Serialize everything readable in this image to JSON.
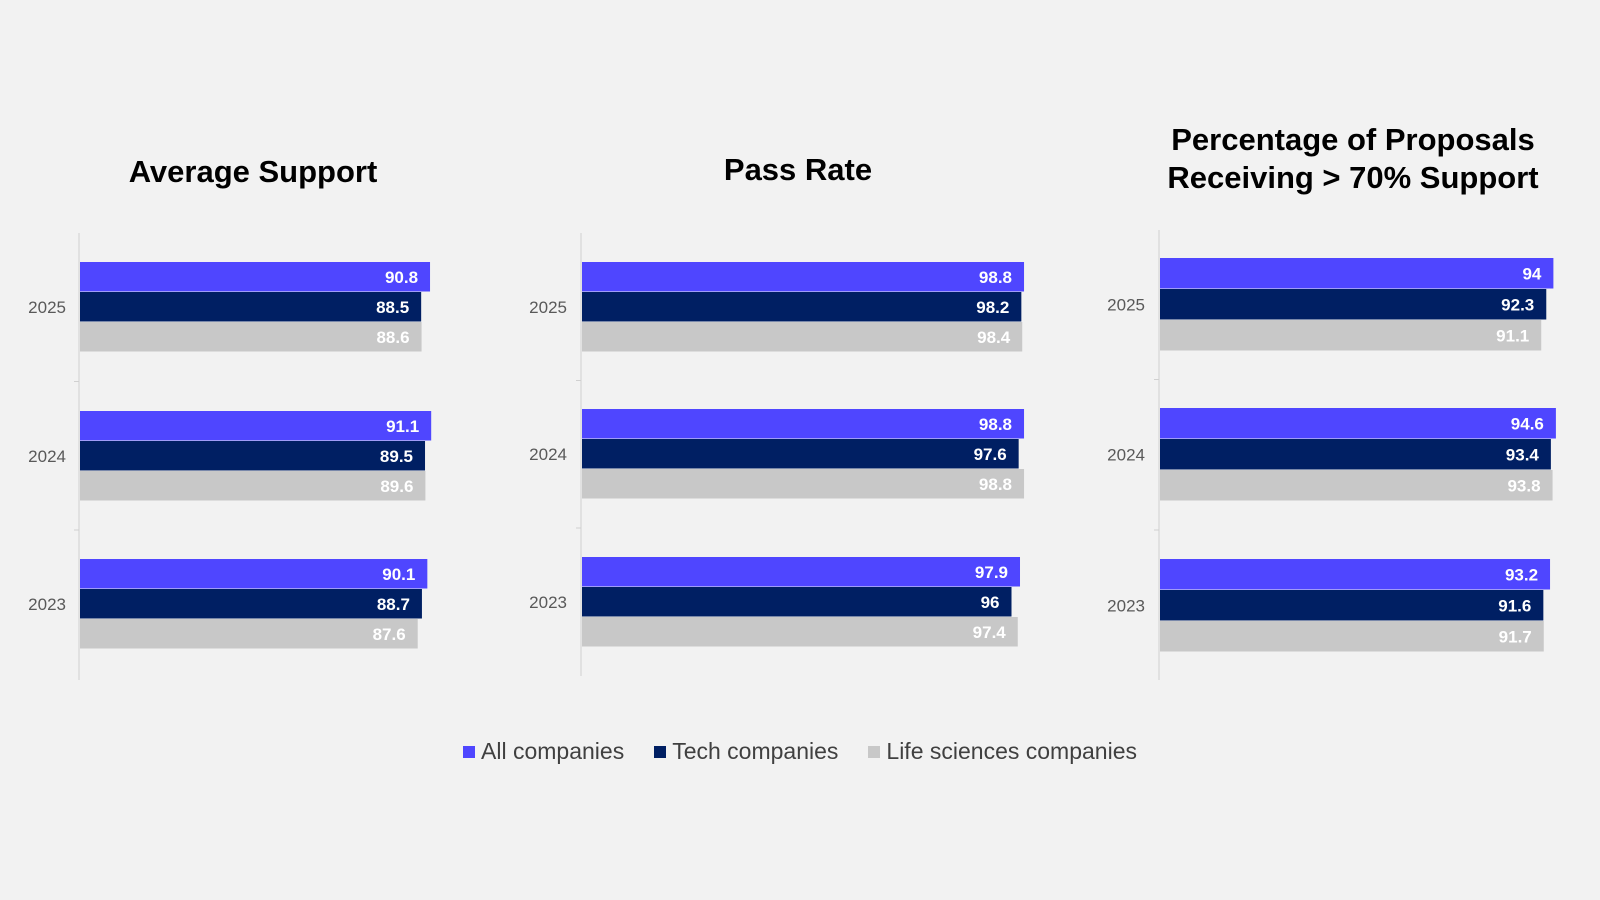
{
  "chart_data": [
    {
      "type": "bar",
      "orientation": "horizontal",
      "title": "Average Support",
      "categories": [
        "2025",
        "2024",
        "2023"
      ],
      "series": [
        {
          "name": "All companies",
          "values": [
            90.8,
            91.1,
            90.1
          ]
        },
        {
          "name": "Tech companies",
          "values": [
            88.5,
            89.5,
            88.7
          ]
        },
        {
          "name": "Life sciences companies",
          "values": [
            88.6,
            89.6,
            87.6
          ]
        }
      ],
      "xlabel": "",
      "ylabel": "",
      "grid": false,
      "data_labels": true
    },
    {
      "type": "bar",
      "orientation": "horizontal",
      "title": "Pass Rate",
      "categories": [
        "2025",
        "2024",
        "2023"
      ],
      "series": [
        {
          "name": "All companies",
          "values": [
            98.8,
            98.8,
            97.9
          ]
        },
        {
          "name": "Tech companies",
          "values": [
            98.2,
            97.6,
            96
          ]
        },
        {
          "name": "Life sciences companies",
          "values": [
            98.4,
            98.8,
            97.4
          ]
        }
      ],
      "xlabel": "",
      "ylabel": "",
      "grid": false,
      "data_labels": true
    },
    {
      "type": "bar",
      "orientation": "horizontal",
      "title": "Percentage of Proposals\nReceiving > 70% Support",
      "categories": [
        "2025",
        "2024",
        "2023"
      ],
      "series": [
        {
          "name": "All companies",
          "values": [
            94,
            94.6,
            93.2
          ]
        },
        {
          "name": "Tech companies",
          "values": [
            92.3,
            93.4,
            91.6
          ]
        },
        {
          "name": "Life sciences companies",
          "values": [
            91.1,
            93.8,
            91.7
          ]
        }
      ],
      "xlabel": "",
      "ylabel": "",
      "grid": false,
      "data_labels": true
    }
  ],
  "legend": {
    "placement": "bottom-center",
    "items": [
      {
        "label": "All companies",
        "color": "#4f46ff"
      },
      {
        "label": "Tech companies",
        "color": "#001f63"
      },
      {
        "label": "Life sciences companies",
        "color": "#c8c8c8"
      }
    ]
  },
  "colors": {
    "background": "#f2f2f2",
    "axis": "#d0d0d0",
    "label_light": "#ffffff",
    "category_label": "#595959"
  }
}
